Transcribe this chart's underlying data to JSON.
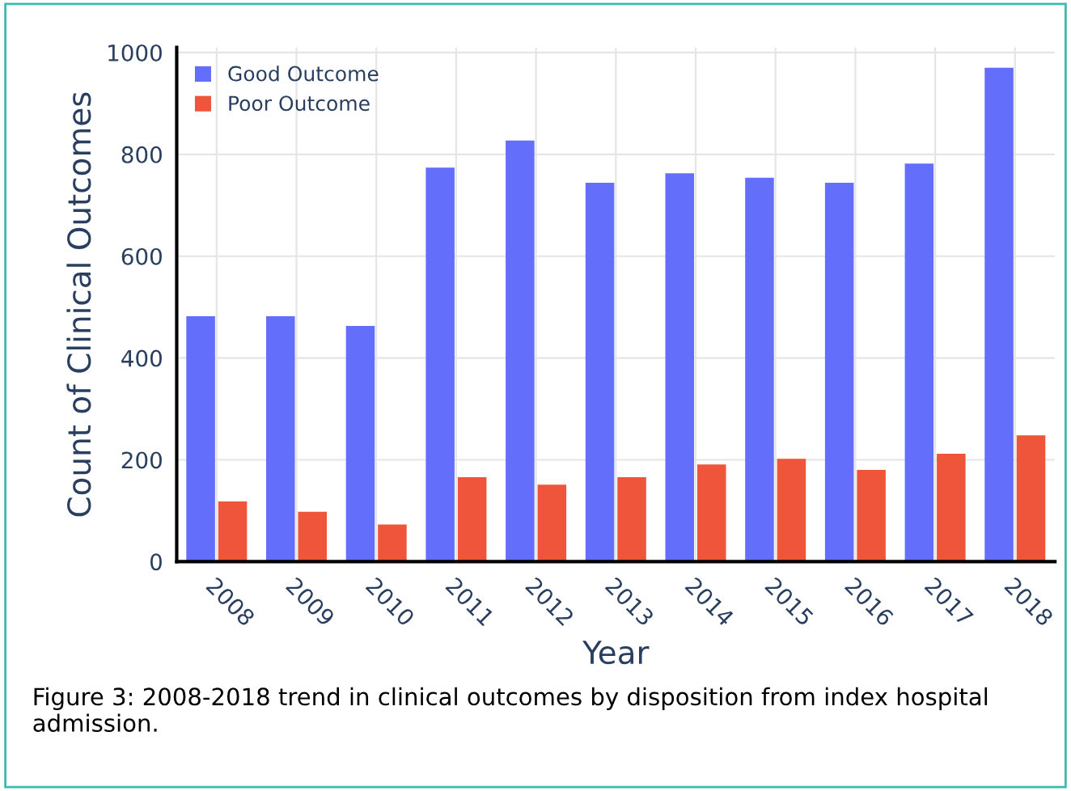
{
  "chart_data": {
    "type": "bar",
    "xlabel": "Year",
    "ylabel": "Count of Clinical Outcomes",
    "categories": [
      "2008",
      "2009",
      "2010",
      "2011",
      "2012",
      "2013",
      "2014",
      "2015",
      "2016",
      "2017",
      "2018"
    ],
    "series": [
      {
        "name": "Good Outcome",
        "color": "#636efa",
        "values": [
          482,
          482,
          463,
          774,
          827,
          744,
          763,
          754,
          744,
          782,
          970
        ]
      },
      {
        "name": "Poor Outcome",
        "color": "#ef553b",
        "values": [
          118,
          98,
          73,
          166,
          151,
          166,
          191,
          202,
          180,
          212,
          248
        ]
      }
    ],
    "ylim": [
      0,
      1010
    ],
    "yticks": [
      0,
      200,
      400,
      600,
      800,
      1000
    ],
    "grid": true,
    "legend": "top left",
    "annotations": [
      "Figure 3: 2008-2018 trend in clinical outcomes by disposition from index hospital admission."
    ]
  }
}
